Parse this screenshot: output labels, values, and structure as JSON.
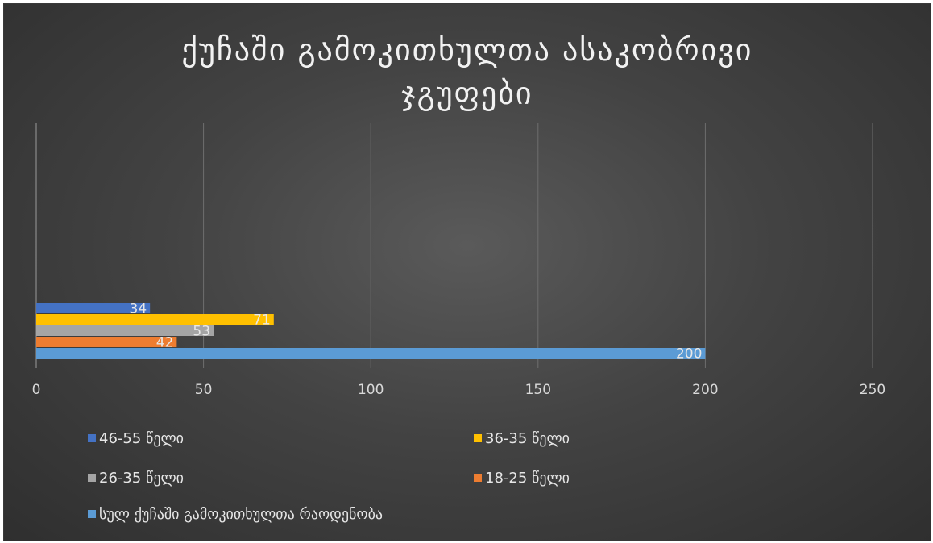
{
  "chart_data": {
    "type": "bar",
    "orientation": "horizontal",
    "title_lines": [
      "ქუჩაში გამოკითხულთა ასაკობრივი",
      "ჯგუფები"
    ],
    "xlabel": "",
    "ylabel": "",
    "xlim": [
      0,
      250
    ],
    "x_ticks": [
      0,
      50,
      100,
      150,
      200,
      250
    ],
    "grid": true,
    "legend_position": "bottom",
    "series": [
      {
        "name": "სულ ქუჩაში გამოკითხულთა რაოდენობა",
        "value": 200,
        "color": "#5b9bd5"
      },
      {
        "name": "18-25 წელი",
        "value": 42,
        "color": "#ed7d31"
      },
      {
        "name": "26-35 წელი",
        "value": 53,
        "color": "#a5a5a5"
      },
      {
        "name": "36-35 წელი",
        "value": 71,
        "color": "#ffc000"
      },
      {
        "name": "46-55 წელი",
        "value": 34,
        "color": "#4472c4"
      }
    ],
    "legend_order": [
      4,
      3,
      2,
      1,
      0
    ]
  }
}
